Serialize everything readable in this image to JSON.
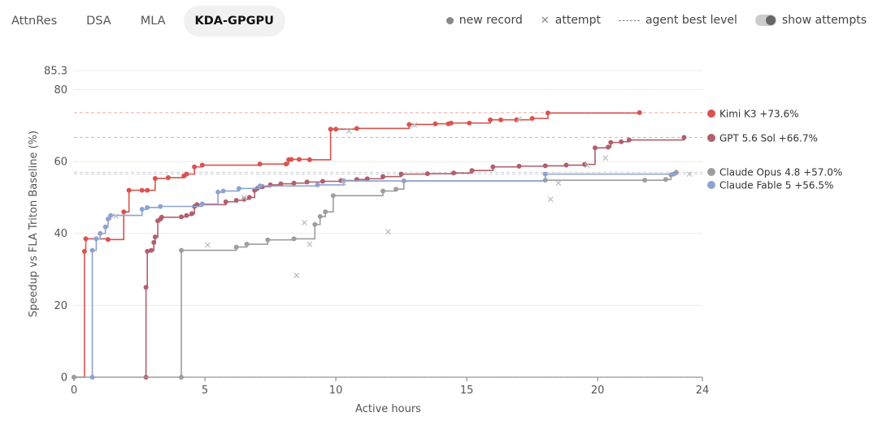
{
  "tabs": [
    {
      "label": "AttnRes",
      "active": false
    },
    {
      "label": "DSA",
      "active": false
    },
    {
      "label": "MLA",
      "active": false
    },
    {
      "label": "KDA-GPGPU",
      "active": true
    }
  ],
  "legend": {
    "new_record": "new record",
    "attempt": "attempt",
    "best_level": "agent best level",
    "toggle_label": "show attempts"
  },
  "chart_data": {
    "type": "line",
    "xlabel": "Active hours",
    "ylabel": "Speedup vs FLA Triton Baseline (%)",
    "xlim": [
      0,
      24
    ],
    "ylim": [
      0,
      85.3
    ],
    "x_ticks": [
      0,
      5,
      10,
      15,
      20,
      24
    ],
    "y_ticks": [
      0,
      20,
      40,
      60,
      80,
      85.3
    ],
    "series": [
      {
        "name": "Kimi K3",
        "label": "Kimi K3 +73.6%",
        "best": 73.6,
        "color": "#d9534f",
        "points": [
          [
            0,
            0
          ],
          [
            0.4,
            35
          ],
          [
            0.45,
            38.5
          ],
          [
            1.3,
            38.3
          ],
          [
            1.9,
            46
          ],
          [
            2.1,
            52
          ],
          [
            2.6,
            52
          ],
          [
            2.8,
            52
          ],
          [
            3.1,
            55.3
          ],
          [
            3.6,
            55.5
          ],
          [
            4.2,
            56
          ],
          [
            4.3,
            56.5
          ],
          [
            4.6,
            58.5
          ],
          [
            4.9,
            59
          ],
          [
            7.1,
            59.3
          ],
          [
            8.1,
            59.3
          ],
          [
            8.2,
            60.5
          ],
          [
            8.3,
            60.6
          ],
          [
            8.6,
            60.6
          ],
          [
            9.0,
            60.5
          ],
          [
            9.8,
            69
          ],
          [
            10.0,
            69
          ],
          [
            10.8,
            69.2
          ],
          [
            12.8,
            70.3
          ],
          [
            13.8,
            70.5
          ],
          [
            14.3,
            70.5
          ],
          [
            14.4,
            70.7
          ],
          [
            15.1,
            70.7
          ],
          [
            15.9,
            71.6
          ],
          [
            16.3,
            71.6
          ],
          [
            16.9,
            71.6
          ],
          [
            17.5,
            72
          ],
          [
            18.1,
            73.5
          ],
          [
            21.6,
            73.6
          ]
        ],
        "attempts": [
          [
            10.5,
            68.5
          ],
          [
            13.0,
            70.1
          ],
          [
            17.0,
            71.8
          ]
        ]
      },
      {
        "name": "GPT 5.6 Sol",
        "label": "GPT 5.6 Sol +66.7%",
        "best": 66.7,
        "color": "#b05f6d",
        "points": [
          [
            2.75,
            0
          ],
          [
            2.75,
            25
          ],
          [
            2.8,
            35
          ],
          [
            2.95,
            35.3
          ],
          [
            3.05,
            37.5
          ],
          [
            3.1,
            39
          ],
          [
            3.2,
            43.5
          ],
          [
            3.3,
            44
          ],
          [
            3.35,
            44.5
          ],
          [
            4.1,
            44.6
          ],
          [
            4.3,
            45
          ],
          [
            4.5,
            45.5
          ],
          [
            4.6,
            47.5
          ],
          [
            4.7,
            48
          ],
          [
            5.8,
            48.8
          ],
          [
            6.2,
            49.2
          ],
          [
            6.5,
            49.5
          ],
          [
            6.7,
            50
          ],
          [
            6.9,
            52
          ],
          [
            7.0,
            52.5
          ],
          [
            7.2,
            53
          ],
          [
            7.5,
            53.5
          ],
          [
            7.9,
            53.8
          ],
          [
            8.4,
            54
          ],
          [
            8.9,
            54.3
          ],
          [
            9.5,
            54.5
          ],
          [
            10.2,
            54.7
          ],
          [
            10.8,
            55
          ],
          [
            11.2,
            55.2
          ],
          [
            11.8,
            55.8
          ],
          [
            12.5,
            56.5
          ],
          [
            13.5,
            56.6
          ],
          [
            14.5,
            56.8
          ],
          [
            15.2,
            57.5
          ],
          [
            16.0,
            58.5
          ],
          [
            17.0,
            58.7
          ],
          [
            18.0,
            58.8
          ],
          [
            18.8,
            59
          ],
          [
            19.5,
            59.2
          ],
          [
            19.9,
            63.8
          ],
          [
            20.4,
            64
          ],
          [
            20.5,
            65.3
          ],
          [
            20.9,
            65.5
          ],
          [
            21.2,
            66
          ],
          [
            23.3,
            66.7
          ]
        ],
        "attempts": [
          [
            19.6,
            58.9
          ]
        ]
      },
      {
        "name": "Claude Opus 4.8",
        "label": "Claude Opus 4.8 +57.0%",
        "best": 57.0,
        "color": "#9e9e9e",
        "points": [
          [
            0,
            0
          ],
          [
            4.1,
            0
          ],
          [
            4.1,
            35.3
          ],
          [
            6.2,
            36.2
          ],
          [
            6.6,
            37
          ],
          [
            7.4,
            38.2
          ],
          [
            8.4,
            38.5
          ],
          [
            9.2,
            42.5
          ],
          [
            9.4,
            44.7
          ],
          [
            9.6,
            46
          ],
          [
            9.9,
            50.5
          ],
          [
            11.8,
            51.8
          ],
          [
            12.3,
            52.3
          ],
          [
            12.6,
            54.6
          ],
          [
            18.0,
            54.8
          ],
          [
            21.8,
            54.8
          ],
          [
            22.6,
            55
          ],
          [
            22.8,
            56.3
          ],
          [
            23.0,
            57
          ]
        ],
        "attempts": [
          [
            5.1,
            36.8
          ],
          [
            8.5,
            28.3
          ],
          [
            8.8,
            43
          ],
          [
            9.0,
            37
          ],
          [
            12.0,
            40.5
          ],
          [
            18.2,
            49.5
          ],
          [
            18.5,
            54
          ],
          [
            20.3,
            61
          ]
        ]
      },
      {
        "name": "Claude Fable 5",
        "label": "Claude Fable 5 +56.5%",
        "best": 56.5,
        "color": "#8ea2d2",
        "points": [
          [
            0.7,
            0
          ],
          [
            0.7,
            35.3
          ],
          [
            0.85,
            38.5
          ],
          [
            1.0,
            40
          ],
          [
            1.2,
            41.8
          ],
          [
            1.3,
            44
          ],
          [
            1.4,
            45
          ],
          [
            2.6,
            46.7
          ],
          [
            2.8,
            47.2
          ],
          [
            3.3,
            47.5
          ],
          [
            4.9,
            48.2
          ],
          [
            5.5,
            51.5
          ],
          [
            5.7,
            51.8
          ],
          [
            6.3,
            52.5
          ],
          [
            7.1,
            53.2
          ],
          [
            9.3,
            53.5
          ],
          [
            10.3,
            54.6
          ],
          [
            18.0,
            56.5
          ],
          [
            22.9,
            56.5
          ]
        ],
        "attempts": [
          [
            1.6,
            44.8
          ],
          [
            6.5,
            50
          ],
          [
            10.3,
            54
          ],
          [
            23.5,
            56.5
          ]
        ]
      }
    ]
  }
}
